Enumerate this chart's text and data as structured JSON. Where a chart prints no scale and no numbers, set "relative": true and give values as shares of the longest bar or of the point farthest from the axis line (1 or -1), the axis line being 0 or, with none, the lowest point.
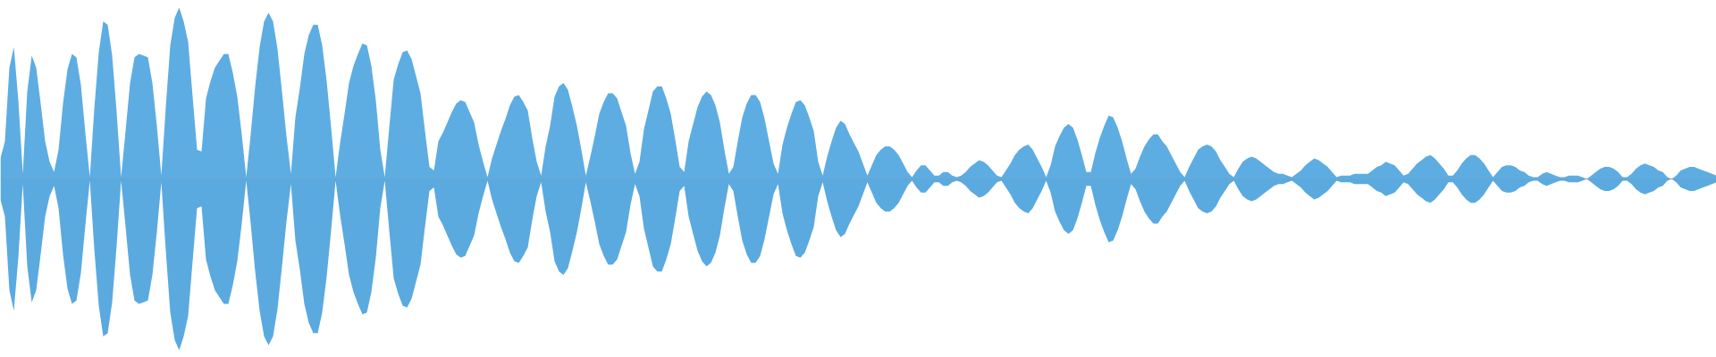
{
  "chart_data": {
    "type": "area",
    "relative": true,
    "categories": [
      null,
      null,
      null,
      null,
      null,
      null,
      null,
      null,
      null,
      null,
      null,
      null,
      null,
      null,
      null,
      null,
      null,
      null,
      null,
      null,
      null,
      null,
      null,
      null,
      null,
      null,
      null,
      null,
      null,
      null,
      null,
      null,
      null,
      null,
      null,
      null,
      null,
      null,
      null,
      null,
      null,
      null,
      null,
      null,
      null,
      null,
      null,
      null,
      null,
      null,
      null,
      null,
      null,
      null,
      null,
      null,
      null,
      null,
      null,
      null,
      null,
      null,
      null,
      null,
      null,
      null,
      null,
      null,
      null,
      null,
      null,
      null,
      null,
      null,
      null,
      null,
      null,
      null,
      null,
      null,
      null,
      null,
      null,
      null,
      null,
      null,
      null,
      null,
      null,
      null,
      null,
      null,
      null,
      null,
      null,
      null,
      null,
      null,
      null,
      null,
      null,
      null,
      null,
      null,
      null,
      null,
      null,
      null,
      null,
      null,
      null,
      null,
      null,
      null,
      null,
      null,
      null,
      null,
      null,
      null,
      null,
      null,
      null,
      null,
      null,
      null,
      null,
      null,
      null,
      null,
      null,
      null,
      null,
      null,
      null,
      null,
      null,
      null,
      null,
      null,
      null,
      null,
      null,
      null,
      null,
      null,
      null,
      null,
      null,
      null,
      null,
      null,
      null,
      null,
      null,
      null,
      null,
      null,
      null,
      null,
      null,
      null,
      null,
      null,
      null,
      null,
      null,
      null,
      null,
      null,
      null,
      null,
      null,
      null,
      null,
      null,
      null,
      null,
      null,
      null,
      null,
      null,
      null,
      null,
      null,
      null,
      null,
      null,
      null,
      null,
      null,
      null,
      null,
      null,
      null,
      null,
      null,
      null,
      null,
      null,
      null,
      null,
      null,
      null,
      null,
      null,
      null,
      null,
      null,
      null,
      null,
      null,
      null,
      null,
      null,
      null,
      null,
      null,
      null,
      null,
      null,
      null,
      null,
      null,
      null,
      null,
      null,
      null,
      null,
      null,
      null,
      null,
      null,
      null,
      null,
      null,
      null,
      null,
      null,
      null,
      null,
      null,
      null,
      null,
      null,
      null,
      null,
      null,
      null,
      null,
      null,
      null,
      null,
      null,
      null,
      null,
      null,
      null,
      null,
      null,
      null,
      null,
      null,
      null,
      null,
      null,
      null,
      null,
      null,
      null,
      null,
      null,
      null,
      null,
      null,
      null,
      null,
      null,
      null,
      null,
      null,
      null,
      null,
      null,
      null,
      null,
      null,
      null,
      null,
      null,
      null,
      null,
      null,
      null,
      null,
      null,
      null,
      null,
      null,
      null,
      null,
      null,
      null,
      null,
      null,
      null,
      null,
      null,
      null,
      null,
      null,
      null,
      null,
      null,
      null,
      null,
      null,
      null,
      null,
      null,
      null,
      null,
      null,
      null,
      null,
      null,
      null,
      null,
      null,
      null,
      null,
      null,
      null,
      null,
      null,
      null,
      null,
      null,
      null,
      null,
      null,
      null,
      null,
      null,
      null,
      null,
      null,
      null,
      null,
      null,
      null,
      null,
      null,
      null,
      null,
      null,
      null,
      null,
      null,
      null,
      null,
      null,
      null,
      null,
      null,
      null,
      null,
      null,
      null,
      null,
      null,
      null,
      null,
      null,
      null,
      null,
      null,
      null,
      null,
      null,
      null,
      null,
      null,
      null,
      null
    ],
    "series": [
      {
        "color": "#5dade2",
        "values": [
          0.12,
          0.22,
          0.65,
          0.77,
          0.46,
          0.03,
          0.51,
          0.72,
          0.65,
          0.44,
          0.22,
          0.1,
          0.04,
          0.17,
          0.44,
          0.64,
          0.73,
          0.71,
          0.55,
          0.27,
          0.01,
          0.41,
          0.74,
          0.92,
          0.9,
          0.72,
          0.39,
          0.01,
          0.28,
          0.56,
          0.71,
          0.73,
          0.72,
          0.71,
          0.56,
          0.31,
          0.02,
          0.42,
          0.78,
          0.94,
          1.0,
          0.92,
          0.8,
          0.48,
          0.17,
          0.16,
          0.47,
          0.57,
          0.65,
          0.69,
          0.73,
          0.73,
          0.62,
          0.48,
          0.26,
          0.01,
          0.26,
          0.54,
          0.77,
          0.92,
          0.97,
          0.92,
          0.76,
          0.51,
          0.25,
          0.03,
          0.36,
          0.53,
          0.73,
          0.84,
          0.9,
          0.9,
          0.78,
          0.57,
          0.3,
          0.01,
          0.21,
          0.38,
          0.56,
          0.66,
          0.73,
          0.79,
          0.78,
          0.66,
          0.46,
          0.17,
          0.01,
          0.3,
          0.58,
          0.67,
          0.74,
          0.75,
          0.7,
          0.6,
          0.5,
          0.28,
          0.07,
          0.05,
          0.22,
          0.27,
          0.33,
          0.39,
          0.44,
          0.46,
          0.45,
          0.39,
          0.33,
          0.2,
          0.1,
          0.01,
          0.12,
          0.2,
          0.28,
          0.35,
          0.43,
          0.48,
          0.49,
          0.45,
          0.4,
          0.24,
          0.1,
          0.02,
          0.19,
          0.31,
          0.48,
          0.54,
          0.56,
          0.52,
          0.42,
          0.31,
          0.17,
          0.02,
          0.13,
          0.25,
          0.38,
          0.45,
          0.5,
          0.5,
          0.47,
          0.39,
          0.31,
          0.15,
          0.03,
          0.1,
          0.29,
          0.4,
          0.51,
          0.54,
          0.54,
          0.47,
          0.38,
          0.23,
          0.07,
          0.04,
          0.22,
          0.32,
          0.42,
          0.48,
          0.51,
          0.49,
          0.43,
          0.33,
          0.17,
          0.03,
          0.07,
          0.22,
          0.36,
          0.44,
          0.49,
          0.49,
          0.45,
          0.35,
          0.22,
          0.09,
          0.03,
          0.2,
          0.3,
          0.38,
          0.45,
          0.46,
          0.43,
          0.36,
          0.28,
          0.1,
          0.02,
          0.13,
          0.22,
          0.3,
          0.34,
          0.32,
          0.26,
          0.21,
          0.16,
          0.09,
          0.02,
          0.08,
          0.14,
          0.17,
          0.19,
          0.19,
          0.17,
          0.14,
          0.09,
          0.04,
          0.01,
          0.05,
          0.08,
          0.08,
          0.05,
          0.02,
          0.02,
          0.04,
          0.04,
          0.02,
          0.01,
          0.02,
          0.04,
          0.07,
          0.09,
          0.11,
          0.1,
          0.08,
          0.05,
          0.02,
          0.01,
          0.05,
          0.09,
          0.14,
          0.17,
          0.19,
          0.2,
          0.17,
          0.12,
          0.07,
          0.01,
          0.08,
          0.19,
          0.25,
          0.3,
          0.32,
          0.3,
          0.23,
          0.14,
          0.04,
          0.04,
          0.15,
          0.24,
          0.31,
          0.37,
          0.36,
          0.3,
          0.22,
          0.12,
          0.03,
          0.06,
          0.13,
          0.19,
          0.23,
          0.26,
          0.26,
          0.22,
          0.19,
          0.14,
          0.09,
          0.04,
          0.01,
          0.07,
          0.12,
          0.17,
          0.19,
          0.2,
          0.19,
          0.16,
          0.11,
          0.07,
          0.03,
          0.01,
          0.06,
          0.1,
          0.12,
          0.13,
          0.12,
          0.1,
          0.08,
          0.06,
          0.04,
          0.03,
          0.03,
          0.02,
          0.01,
          0.03,
          0.05,
          0.08,
          0.1,
          0.12,
          0.11,
          0.09,
          0.07,
          0.04,
          0.01,
          0.02,
          0.02,
          0.02,
          0.03,
          0.03,
          0.03,
          0.03,
          0.05,
          0.07,
          0.08,
          0.1,
          0.09,
          0.08,
          0.05,
          0.02,
          0.03,
          0.06,
          0.09,
          0.11,
          0.13,
          0.14,
          0.12,
          0.09,
          0.06,
          0.02,
          0.02,
          0.05,
          0.09,
          0.12,
          0.14,
          0.14,
          0.12,
          0.09,
          0.05,
          0.01,
          0.04,
          0.07,
          0.08,
          0.08,
          0.07,
          0.05,
          0.04,
          0.02,
          0.01,
          0.01,
          0.03,
          0.04,
          0.03,
          0.02,
          0.01,
          0.01,
          0.02,
          0.02,
          0.02,
          0.01,
          0,
          0.02,
          0.04,
          0.06,
          0.07,
          0.07,
          0.06,
          0.04,
          0.01,
          0.01,
          0.03,
          0.06,
          0.08,
          0.09,
          0.08,
          0.07,
          0.05,
          0.04,
          0.01,
          0,
          0.02,
          0.05,
          0.06,
          0.07,
          0.07,
          0.06,
          0.05,
          0.04,
          0.03,
          0.02
        ]
      },
      {
        "color": "#5aaae0",
        "values": [
          -0.12,
          -0.22,
          -0.65,
          -0.77,
          -0.46,
          -0.03,
          -0.51,
          -0.72,
          -0.65,
          -0.44,
          -0.22,
          -0.1,
          -0.04,
          -0.17,
          -0.44,
          -0.64,
          -0.73,
          -0.71,
          -0.55,
          -0.27,
          -0.01,
          -0.41,
          -0.74,
          -0.92,
          -0.9,
          -0.72,
          -0.39,
          -0.01,
          -0.28,
          -0.56,
          -0.71,
          -0.73,
          -0.72,
          -0.71,
          -0.56,
          -0.31,
          -0.02,
          -0.42,
          -0.78,
          -0.94,
          -1.0,
          -0.92,
          -0.8,
          -0.48,
          -0.17,
          -0.16,
          -0.47,
          -0.57,
          -0.65,
          -0.69,
          -0.73,
          -0.73,
          -0.62,
          -0.48,
          -0.26,
          -0.01,
          -0.26,
          -0.54,
          -0.77,
          -0.92,
          -0.97,
          -0.92,
          -0.76,
          -0.51,
          -0.25,
          -0.03,
          -0.36,
          -0.53,
          -0.73,
          -0.84,
          -0.9,
          -0.9,
          -0.78,
          -0.57,
          -0.3,
          -0.01,
          -0.21,
          -0.38,
          -0.56,
          -0.66,
          -0.73,
          -0.79,
          -0.78,
          -0.66,
          -0.46,
          -0.17,
          -0.01,
          -0.3,
          -0.58,
          -0.67,
          -0.74,
          -0.75,
          -0.7,
          -0.6,
          -0.5,
          -0.28,
          -0.07,
          -0.05,
          -0.22,
          -0.27,
          -0.33,
          -0.39,
          -0.44,
          -0.46,
          -0.45,
          -0.39,
          -0.33,
          -0.2,
          -0.1,
          -0.01,
          -0.12,
          -0.2,
          -0.28,
          -0.35,
          -0.43,
          -0.48,
          -0.49,
          -0.45,
          -0.4,
          -0.24,
          -0.1,
          -0.02,
          -0.19,
          -0.31,
          -0.48,
          -0.54,
          -0.56,
          -0.52,
          -0.42,
          -0.31,
          -0.17,
          -0.02,
          -0.13,
          -0.25,
          -0.38,
          -0.45,
          -0.5,
          -0.5,
          -0.47,
          -0.39,
          -0.31,
          -0.15,
          -0.03,
          -0.1,
          -0.29,
          -0.4,
          -0.51,
          -0.54,
          -0.54,
          -0.47,
          -0.38,
          -0.23,
          -0.07,
          -0.04,
          -0.22,
          -0.32,
          -0.42,
          -0.48,
          -0.51,
          -0.49,
          -0.43,
          -0.33,
          -0.17,
          -0.03,
          -0.07,
          -0.22,
          -0.36,
          -0.44,
          -0.49,
          -0.49,
          -0.45,
          -0.35,
          -0.22,
          -0.09,
          -0.03,
          -0.2,
          -0.3,
          -0.38,
          -0.45,
          -0.46,
          -0.43,
          -0.36,
          -0.28,
          -0.1,
          -0.02,
          -0.13,
          -0.22,
          -0.3,
          -0.34,
          -0.32,
          -0.26,
          -0.21,
          -0.16,
          -0.09,
          -0.02,
          -0.08,
          -0.14,
          -0.17,
          -0.19,
          -0.19,
          -0.17,
          -0.14,
          -0.09,
          -0.04,
          -0.01,
          -0.05,
          -0.08,
          -0.08,
          -0.05,
          -0.02,
          -0.02,
          -0.04,
          -0.04,
          -0.02,
          -0.01,
          -0.02,
          -0.04,
          -0.07,
          -0.09,
          -0.11,
          -0.1,
          -0.08,
          -0.05,
          -0.02,
          -0.01,
          -0.05,
          -0.09,
          -0.14,
          -0.17,
          -0.19,
          -0.2,
          -0.17,
          -0.12,
          -0.07,
          -0.01,
          -0.08,
          -0.19,
          -0.25,
          -0.3,
          -0.32,
          -0.3,
          -0.23,
          -0.14,
          -0.04,
          -0.04,
          -0.15,
          -0.24,
          -0.31,
          -0.37,
          -0.36,
          -0.3,
          -0.22,
          -0.12,
          -0.03,
          -0.06,
          -0.13,
          -0.19,
          -0.23,
          -0.26,
          -0.26,
          -0.22,
          -0.19,
          -0.14,
          -0.09,
          -0.04,
          -0.01,
          -0.07,
          -0.12,
          -0.17,
          -0.19,
          -0.2,
          -0.19,
          -0.16,
          -0.11,
          -0.07,
          -0.03,
          -0.01,
          -0.06,
          -0.1,
          -0.12,
          -0.13,
          -0.12,
          -0.1,
          -0.08,
          -0.06,
          -0.04,
          -0.03,
          -0.03,
          -0.02,
          -0.01,
          -0.03,
          -0.05,
          -0.08,
          -0.1,
          -0.12,
          -0.11,
          -0.09,
          -0.07,
          -0.04,
          -0.01,
          -0.02,
          -0.02,
          -0.02,
          -0.03,
          -0.03,
          -0.03,
          -0.03,
          -0.05,
          -0.07,
          -0.08,
          -0.1,
          -0.09,
          -0.08,
          -0.05,
          -0.02,
          -0.03,
          -0.06,
          -0.09,
          -0.11,
          -0.13,
          -0.14,
          -0.12,
          -0.09,
          -0.06,
          -0.02,
          -0.02,
          -0.05,
          -0.09,
          -0.12,
          -0.14,
          -0.14,
          -0.12,
          -0.09,
          -0.05,
          -0.01,
          -0.04,
          -0.07,
          -0.08,
          -0.08,
          -0.07,
          -0.05,
          -0.04,
          -0.02,
          -0.01,
          -0.01,
          -0.03,
          -0.04,
          -0.03,
          -0.02,
          -0.01,
          -0.01,
          -0.02,
          -0.02,
          -0.02,
          -0.01,
          0,
          -0.02,
          -0.04,
          -0.06,
          -0.07,
          -0.07,
          -0.06,
          -0.04,
          -0.01,
          -0.01,
          -0.03,
          -0.06,
          -0.08,
          -0.09,
          -0.08,
          -0.07,
          -0.05,
          -0.04,
          -0.01,
          0,
          -0.02,
          -0.05,
          -0.06,
          -0.07,
          -0.07,
          -0.06,
          -0.05,
          -0.04,
          -0.03,
          -0.02
        ]
      }
    ]
  }
}
